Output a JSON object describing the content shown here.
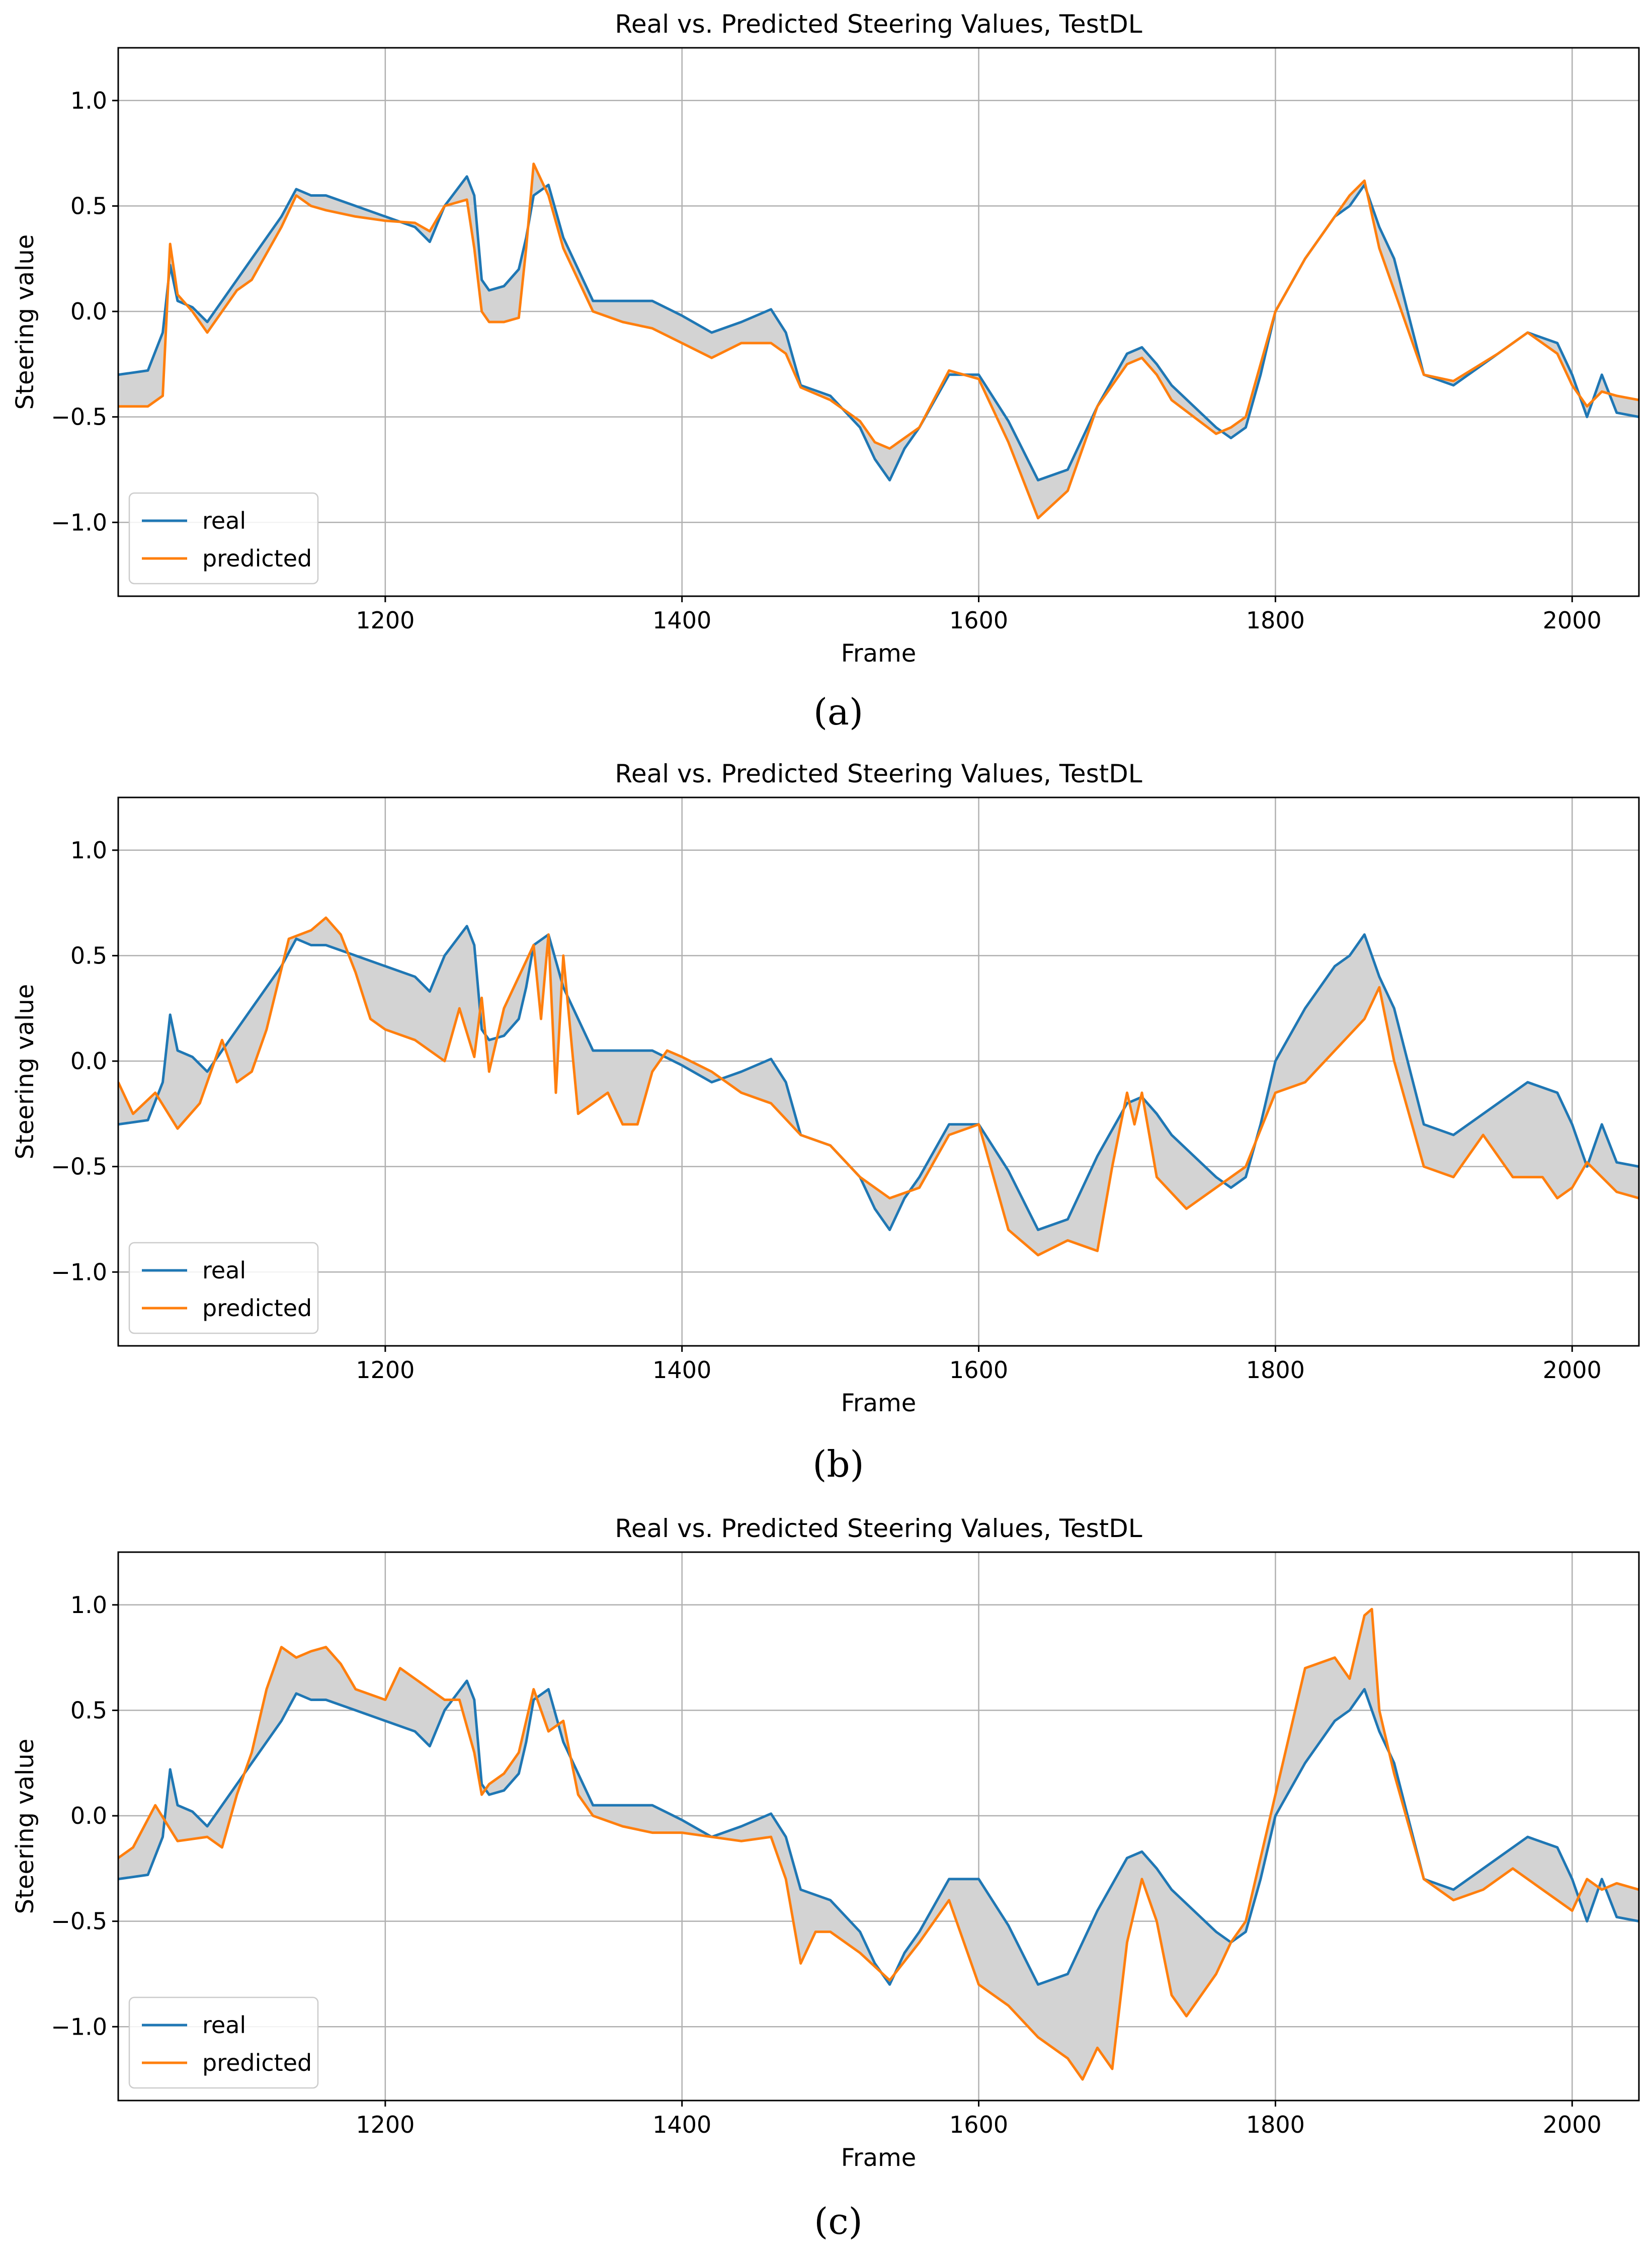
{
  "figure": {
    "panels": [
      "(a)",
      "(b)",
      "(c)"
    ]
  },
  "chart_data": [
    {
      "id": "a",
      "panel_label": "(a)",
      "type": "line",
      "title": "Real vs. Predicted Steering Values, TestDL",
      "xlabel": "Frame",
      "ylabel": "Steering value",
      "xlim": [
        1020,
        2045
      ],
      "ylim": [
        -1.35,
        1.25
      ],
      "xticks": [
        1200,
        1400,
        1600,
        1800,
        2000
      ],
      "yticks": [
        1.0,
        0.5,
        0.0,
        -0.5,
        -1.0
      ],
      "ytick_labels": [
        "1.0",
        "0.5",
        "0.0",
        "−0.5",
        "−1.0"
      ],
      "grid": true,
      "legend_position": "lower-left",
      "fill_between": true,
      "colors": {
        "real": "#1f77b4",
        "predicted": "#ff7f0e",
        "fill": "#d3d3d3"
      },
      "series": [
        {
          "name": "real",
          "x": [
            1020,
            1040,
            1050,
            1055,
            1060,
            1070,
            1080,
            1100,
            1110,
            1130,
            1140,
            1150,
            1160,
            1180,
            1200,
            1220,
            1230,
            1240,
            1255,
            1260,
            1265,
            1270,
            1280,
            1290,
            1295,
            1300,
            1310,
            1320,
            1330,
            1340,
            1360,
            1380,
            1400,
            1420,
            1440,
            1460,
            1470,
            1480,
            1500,
            1520,
            1530,
            1540,
            1550,
            1560,
            1580,
            1600,
            1620,
            1640,
            1660,
            1680,
            1700,
            1710,
            1720,
            1730,
            1760,
            1770,
            1780,
            1790,
            1800,
            1820,
            1840,
            1850,
            1860,
            1870,
            1880,
            1900,
            1920,
            1950,
            1970,
            1990,
            2000,
            2010,
            2020,
            2030,
            2045
          ],
          "values": [
            -0.3,
            -0.28,
            -0.1,
            0.22,
            0.05,
            0.02,
            -0.05,
            0.15,
            0.25,
            0.45,
            0.58,
            0.55,
            0.55,
            0.5,
            0.45,
            0.4,
            0.33,
            0.5,
            0.64,
            0.55,
            0.15,
            0.1,
            0.12,
            0.2,
            0.35,
            0.55,
            0.6,
            0.35,
            0.2,
            0.05,
            0.05,
            0.05,
            -0.02,
            -0.1,
            -0.05,
            0.01,
            -0.1,
            -0.35,
            -0.4,
            -0.55,
            -0.7,
            -0.8,
            -0.65,
            -0.55,
            -0.3,
            -0.3,
            -0.52,
            -0.8,
            -0.75,
            -0.45,
            -0.2,
            -0.17,
            -0.25,
            -0.35,
            -0.55,
            -0.6,
            -0.55,
            -0.3,
            0.0,
            0.25,
            0.45,
            0.5,
            0.6,
            0.4,
            0.25,
            -0.3,
            -0.35,
            -0.2,
            -0.1,
            -0.15,
            -0.3,
            -0.5,
            -0.3,
            -0.48,
            -0.5
          ]
        },
        {
          "name": "predicted",
          "x": [
            1020,
            1040,
            1050,
            1055,
            1060,
            1070,
            1080,
            1100,
            1110,
            1130,
            1140,
            1150,
            1160,
            1180,
            1200,
            1220,
            1230,
            1240,
            1255,
            1260,
            1265,
            1270,
            1280,
            1290,
            1295,
            1300,
            1310,
            1320,
            1330,
            1340,
            1360,
            1380,
            1400,
            1420,
            1440,
            1460,
            1470,
            1480,
            1500,
            1520,
            1530,
            1540,
            1550,
            1560,
            1580,
            1600,
            1620,
            1640,
            1660,
            1680,
            1700,
            1710,
            1720,
            1730,
            1760,
            1770,
            1780,
            1790,
            1800,
            1820,
            1840,
            1850,
            1860,
            1870,
            1880,
            1900,
            1920,
            1950,
            1970,
            1990,
            2000,
            2010,
            2020,
            2030,
            2045
          ],
          "values": [
            -0.45,
            -0.45,
            -0.4,
            0.32,
            0.08,
            0.0,
            -0.1,
            0.1,
            0.15,
            0.4,
            0.55,
            0.5,
            0.48,
            0.45,
            0.43,
            0.42,
            0.38,
            0.5,
            0.53,
            0.3,
            0.0,
            -0.05,
            -0.05,
            -0.03,
            0.3,
            0.7,
            0.55,
            0.3,
            0.15,
            0.0,
            -0.05,
            -0.08,
            -0.15,
            -0.22,
            -0.15,
            -0.15,
            -0.2,
            -0.36,
            -0.42,
            -0.52,
            -0.62,
            -0.65,
            -0.6,
            -0.55,
            -0.28,
            -0.32,
            -0.62,
            -0.98,
            -0.85,
            -0.45,
            -0.25,
            -0.22,
            -0.3,
            -0.42,
            -0.58,
            -0.55,
            -0.5,
            -0.25,
            0.0,
            0.25,
            0.45,
            0.55,
            0.62,
            0.3,
            0.1,
            -0.3,
            -0.33,
            -0.2,
            -0.1,
            -0.2,
            -0.35,
            -0.45,
            -0.38,
            -0.4,
            -0.42
          ]
        }
      ]
    },
    {
      "id": "b",
      "panel_label": "(b)",
      "type": "line",
      "title": "Real vs. Predicted Steering Values, TestDL",
      "xlabel": "Frame",
      "ylabel": "Steering value",
      "xlim": [
        1020,
        2045
      ],
      "ylim": [
        -1.35,
        1.25
      ],
      "xticks": [
        1200,
        1400,
        1600,
        1800,
        2000
      ],
      "yticks": [
        1.0,
        0.5,
        0.0,
        -0.5,
        -1.0
      ],
      "ytick_labels": [
        "1.0",
        "0.5",
        "0.0",
        "−0.5",
        "−1.0"
      ],
      "grid": true,
      "legend_position": "lower-left",
      "fill_between": true,
      "colors": {
        "real": "#1f77b4",
        "predicted": "#ff7f0e",
        "fill": "#d3d3d3"
      },
      "series": [
        {
          "name": "real",
          "x": [
            1020,
            1040,
            1050,
            1055,
            1060,
            1070,
            1080,
            1100,
            1110,
            1130,
            1140,
            1150,
            1160,
            1180,
            1200,
            1220,
            1230,
            1240,
            1255,
            1260,
            1265,
            1270,
            1280,
            1290,
            1295,
            1300,
            1310,
            1320,
            1330,
            1340,
            1360,
            1380,
            1400,
            1420,
            1440,
            1460,
            1470,
            1480,
            1500,
            1520,
            1530,
            1540,
            1550,
            1560,
            1580,
            1600,
            1620,
            1640,
            1660,
            1680,
            1700,
            1710,
            1720,
            1730,
            1760,
            1770,
            1780,
            1790,
            1800,
            1820,
            1840,
            1850,
            1860,
            1870,
            1880,
            1900,
            1920,
            1950,
            1970,
            1990,
            2000,
            2010,
            2020,
            2030,
            2045
          ],
          "values": [
            -0.3,
            -0.28,
            -0.1,
            0.22,
            0.05,
            0.02,
            -0.05,
            0.15,
            0.25,
            0.45,
            0.58,
            0.55,
            0.55,
            0.5,
            0.45,
            0.4,
            0.33,
            0.5,
            0.64,
            0.55,
            0.15,
            0.1,
            0.12,
            0.2,
            0.35,
            0.55,
            0.6,
            0.35,
            0.2,
            0.05,
            0.05,
            0.05,
            -0.02,
            -0.1,
            -0.05,
            0.01,
            -0.1,
            -0.35,
            -0.4,
            -0.55,
            -0.7,
            -0.8,
            -0.65,
            -0.55,
            -0.3,
            -0.3,
            -0.52,
            -0.8,
            -0.75,
            -0.45,
            -0.2,
            -0.17,
            -0.25,
            -0.35,
            -0.55,
            -0.6,
            -0.55,
            -0.3,
            0.0,
            0.25,
            0.45,
            0.5,
            0.6,
            0.4,
            0.25,
            -0.3,
            -0.35,
            -0.2,
            -0.1,
            -0.15,
            -0.3,
            -0.5,
            -0.3,
            -0.48,
            -0.5
          ]
        },
        {
          "name": "predicted",
          "x": [
            1020,
            1030,
            1045,
            1060,
            1075,
            1090,
            1100,
            1110,
            1120,
            1135,
            1150,
            1160,
            1170,
            1180,
            1190,
            1200,
            1220,
            1240,
            1250,
            1260,
            1265,
            1270,
            1280,
            1290,
            1300,
            1305,
            1310,
            1315,
            1320,
            1330,
            1340,
            1350,
            1360,
            1370,
            1380,
            1390,
            1400,
            1420,
            1440,
            1460,
            1480,
            1500,
            1520,
            1540,
            1560,
            1580,
            1600,
            1620,
            1640,
            1660,
            1680,
            1690,
            1700,
            1705,
            1710,
            1720,
            1740,
            1760,
            1780,
            1800,
            1820,
            1840,
            1860,
            1870,
            1880,
            1900,
            1920,
            1940,
            1960,
            1980,
            1990,
            2000,
            2010,
            2020,
            2030,
            2045
          ],
          "values": [
            -0.1,
            -0.25,
            -0.15,
            -0.32,
            -0.2,
            0.1,
            -0.1,
            -0.05,
            0.15,
            0.58,
            0.62,
            0.68,
            0.6,
            0.42,
            0.2,
            0.15,
            0.1,
            0.0,
            0.25,
            0.02,
            0.3,
            -0.05,
            0.25,
            0.4,
            0.55,
            0.2,
            0.6,
            -0.15,
            0.5,
            -0.25,
            -0.2,
            -0.15,
            -0.3,
            -0.3,
            -0.05,
            0.05,
            0.02,
            -0.05,
            -0.15,
            -0.2,
            -0.35,
            -0.4,
            -0.55,
            -0.65,
            -0.6,
            -0.35,
            -0.3,
            -0.8,
            -0.92,
            -0.85,
            -0.9,
            -0.5,
            -0.15,
            -0.3,
            -0.15,
            -0.55,
            -0.7,
            -0.6,
            -0.5,
            -0.15,
            -0.1,
            0.05,
            0.2,
            0.35,
            0.0,
            -0.5,
            -0.55,
            -0.35,
            -0.55,
            -0.55,
            -0.65,
            -0.6,
            -0.48,
            -0.55,
            -0.62,
            -0.65
          ]
        }
      ]
    },
    {
      "id": "c",
      "panel_label": "(c)",
      "type": "line",
      "title": "Real vs. Predicted Steering Values, TestDL",
      "xlabel": "Frame",
      "ylabel": "Steering value",
      "xlim": [
        1020,
        2045
      ],
      "ylim": [
        -1.35,
        1.25
      ],
      "xticks": [
        1200,
        1400,
        1600,
        1800,
        2000
      ],
      "yticks": [
        1.0,
        0.5,
        0.0,
        -0.5,
        -1.0
      ],
      "ytick_labels": [
        "1.0",
        "0.5",
        "0.0",
        "−0.5",
        "−1.0"
      ],
      "grid": true,
      "legend_position": "lower-left",
      "fill_between": true,
      "colors": {
        "real": "#1f77b4",
        "predicted": "#ff7f0e",
        "fill": "#d3d3d3"
      },
      "series": [
        {
          "name": "real",
          "x": [
            1020,
            1040,
            1050,
            1055,
            1060,
            1070,
            1080,
            1100,
            1110,
            1130,
            1140,
            1150,
            1160,
            1180,
            1200,
            1220,
            1230,
            1240,
            1255,
            1260,
            1265,
            1270,
            1280,
            1290,
            1295,
            1300,
            1310,
            1320,
            1330,
            1340,
            1360,
            1380,
            1400,
            1420,
            1440,
            1460,
            1470,
            1480,
            1500,
            1520,
            1530,
            1540,
            1550,
            1560,
            1580,
            1600,
            1620,
            1640,
            1660,
            1680,
            1700,
            1710,
            1720,
            1730,
            1760,
            1770,
            1780,
            1790,
            1800,
            1820,
            1840,
            1850,
            1860,
            1870,
            1880,
            1900,
            1920,
            1950,
            1970,
            1990,
            2000,
            2010,
            2020,
            2030,
            2045
          ],
          "values": [
            -0.3,
            -0.28,
            -0.1,
            0.22,
            0.05,
            0.02,
            -0.05,
            0.15,
            0.25,
            0.45,
            0.58,
            0.55,
            0.55,
            0.5,
            0.45,
            0.4,
            0.33,
            0.5,
            0.64,
            0.55,
            0.15,
            0.1,
            0.12,
            0.2,
            0.35,
            0.55,
            0.6,
            0.35,
            0.2,
            0.05,
            0.05,
            0.05,
            -0.02,
            -0.1,
            -0.05,
            0.01,
            -0.1,
            -0.35,
            -0.4,
            -0.55,
            -0.7,
            -0.8,
            -0.65,
            -0.55,
            -0.3,
            -0.3,
            -0.52,
            -0.8,
            -0.75,
            -0.45,
            -0.2,
            -0.17,
            -0.25,
            -0.35,
            -0.55,
            -0.6,
            -0.55,
            -0.3,
            0.0,
            0.25,
            0.45,
            0.5,
            0.6,
            0.4,
            0.25,
            -0.3,
            -0.35,
            -0.2,
            -0.1,
            -0.15,
            -0.3,
            -0.5,
            -0.3,
            -0.48,
            -0.5
          ]
        },
        {
          "name": "predicted",
          "x": [
            1020,
            1030,
            1045,
            1060,
            1080,
            1090,
            1100,
            1110,
            1120,
            1130,
            1140,
            1150,
            1160,
            1170,
            1180,
            1200,
            1210,
            1230,
            1240,
            1250,
            1260,
            1265,
            1270,
            1280,
            1290,
            1300,
            1310,
            1320,
            1330,
            1340,
            1360,
            1380,
            1400,
            1420,
            1440,
            1460,
            1470,
            1480,
            1490,
            1500,
            1520,
            1540,
            1560,
            1580,
            1600,
            1620,
            1640,
            1660,
            1670,
            1680,
            1690,
            1700,
            1710,
            1720,
            1730,
            1740,
            1760,
            1770,
            1780,
            1800,
            1820,
            1840,
            1850,
            1860,
            1865,
            1870,
            1880,
            1900,
            1920,
            1940,
            1960,
            1980,
            2000,
            2010,
            2020,
            2030,
            2045
          ],
          "values": [
            -0.2,
            -0.15,
            0.05,
            -0.12,
            -0.1,
            -0.15,
            0.1,
            0.3,
            0.6,
            0.8,
            0.75,
            0.78,
            0.8,
            0.72,
            0.6,
            0.55,
            0.7,
            0.6,
            0.55,
            0.55,
            0.3,
            0.1,
            0.15,
            0.2,
            0.3,
            0.6,
            0.4,
            0.45,
            0.1,
            0.0,
            -0.05,
            -0.08,
            -0.08,
            -0.1,
            -0.12,
            -0.1,
            -0.3,
            -0.7,
            -0.55,
            -0.55,
            -0.65,
            -0.78,
            -0.6,
            -0.4,
            -0.8,
            -0.9,
            -1.05,
            -1.15,
            -1.25,
            -1.1,
            -1.2,
            -0.6,
            -0.3,
            -0.5,
            -0.85,
            -0.95,
            -0.75,
            -0.6,
            -0.5,
            0.1,
            0.7,
            0.75,
            0.65,
            0.95,
            0.98,
            0.5,
            0.2,
            -0.3,
            -0.4,
            -0.35,
            -0.25,
            -0.35,
            -0.45,
            -0.3,
            -0.35,
            -0.32,
            -0.35
          ]
        }
      ]
    }
  ]
}
